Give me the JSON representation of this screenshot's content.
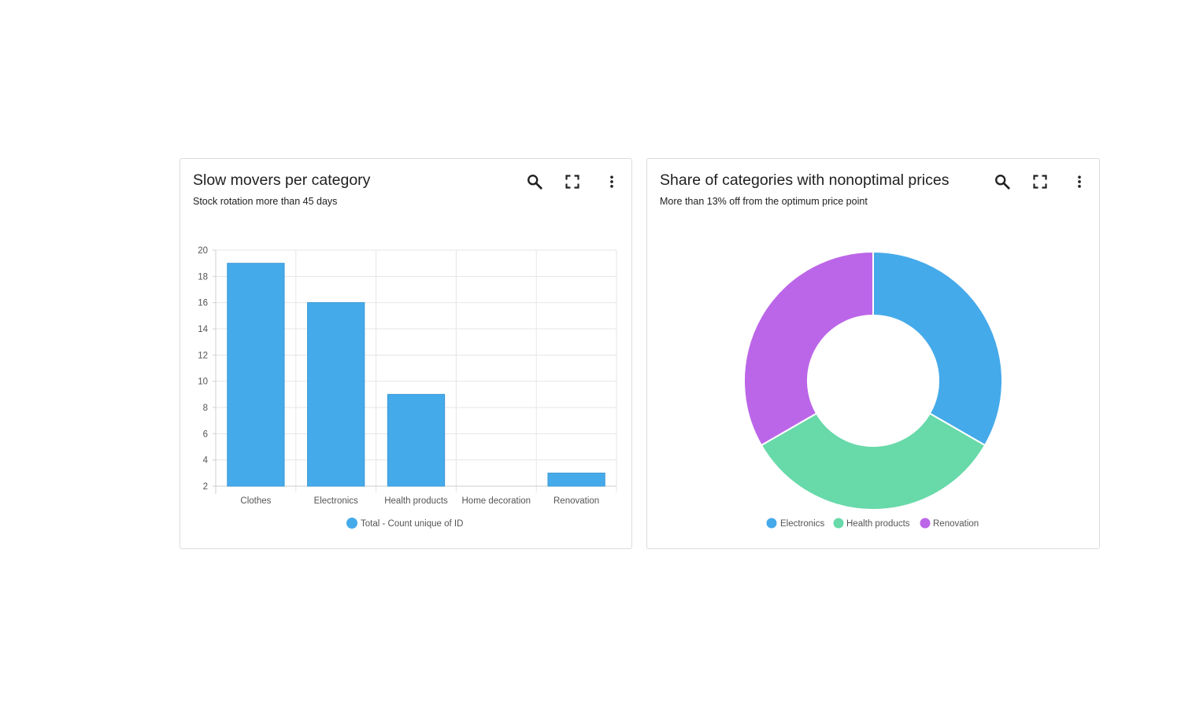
{
  "colors": {
    "blue": "#45aaea",
    "green": "#68d9a9",
    "purple": "#bb66e8",
    "icon": "#222222"
  },
  "cards": [
    {
      "title": "Slow movers per category",
      "subtitle": "Stock rotation more than 45 days",
      "icons": [
        "search-icon",
        "fullscreen-icon",
        "more-vert-icon"
      ]
    },
    {
      "title": "Share of categories with nonoptimal prices",
      "subtitle": "More than 13% off from the optimum price point",
      "icons": [
        "search-icon",
        "fullscreen-icon",
        "more-vert-icon"
      ]
    }
  ],
  "chart_data": [
    {
      "type": "bar",
      "title": "Slow movers per category",
      "subtitle": "Stock rotation more than 45 days",
      "categories": [
        "Clothes",
        "Electronics",
        "Health products",
        "Home decoration",
        "Renovation"
      ],
      "series": [
        {
          "name": "Total - Count unique of ID",
          "values": [
            19,
            16,
            9,
            2,
            3
          ],
          "color": "#45aaea"
        }
      ],
      "ylim": [
        2,
        20
      ],
      "yticks": [
        2,
        4,
        6,
        8,
        10,
        12,
        14,
        16,
        18,
        20
      ],
      "grid": true,
      "legend": "bottom"
    },
    {
      "type": "pie",
      "title": "Share of categories with nonoptimal prices",
      "subtitle": "More than 13% off from the optimum price point",
      "donut": true,
      "labels": [
        "Electronics",
        "Health products",
        "Renovation"
      ],
      "values": [
        1,
        1,
        1
      ],
      "colors": [
        "#45aaea",
        "#68d9a9",
        "#bb66e8"
      ],
      "legend": "bottom"
    }
  ]
}
